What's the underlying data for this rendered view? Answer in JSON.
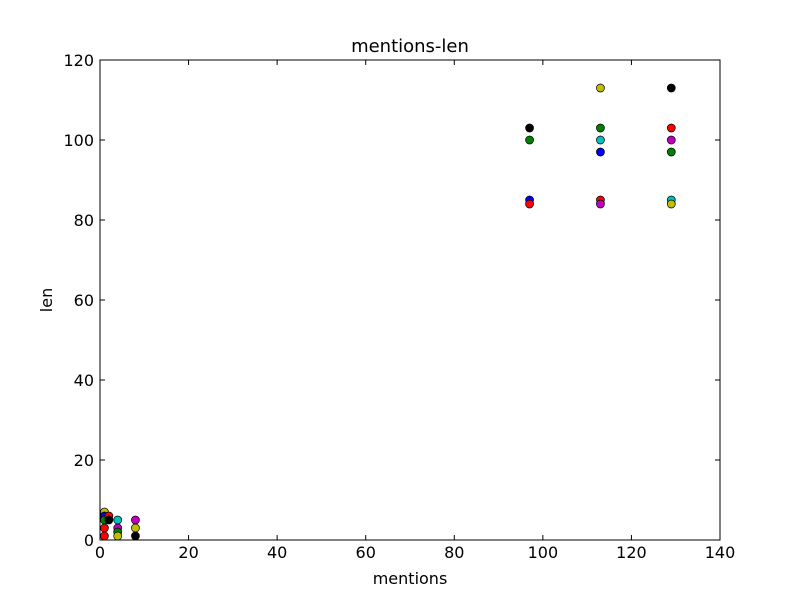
{
  "chart_data": {
    "type": "scatter",
    "title": "mentions-len",
    "xlabel": "mentions",
    "ylabel": "len",
    "xlim": [
      0,
      140
    ],
    "ylim": [
      0,
      120
    ],
    "xticks": [
      0,
      20,
      40,
      60,
      80,
      100,
      120,
      140
    ],
    "yticks": [
      0,
      20,
      40,
      60,
      80,
      100,
      120
    ],
    "grid": false,
    "colors": [
      "#0000ff",
      "#008000",
      "#ff0000",
      "#00bfbf",
      "#bf00bf",
      "#bfbf00",
      "#000000"
    ],
    "points": [
      {
        "x": 97,
        "y": 103,
        "color": "#000000"
      },
      {
        "x": 97,
        "y": 100,
        "color": "#008000"
      },
      {
        "x": 97,
        "y": 85,
        "color": "#0000ff"
      },
      {
        "x": 97,
        "y": 84,
        "color": "#ff0000"
      },
      {
        "x": 113,
        "y": 113,
        "color": "#bfbf00"
      },
      {
        "x": 113,
        "y": 103,
        "color": "#008000"
      },
      {
        "x": 113,
        "y": 100,
        "color": "#00bfbf"
      },
      {
        "x": 113,
        "y": 97,
        "color": "#0000ff"
      },
      {
        "x": 113,
        "y": 85,
        "color": "#ff0000"
      },
      {
        "x": 113,
        "y": 84,
        "color": "#bf00bf"
      },
      {
        "x": 129,
        "y": 113,
        "color": "#000000"
      },
      {
        "x": 129,
        "y": 103,
        "color": "#ff0000"
      },
      {
        "x": 129,
        "y": 100,
        "color": "#bf00bf"
      },
      {
        "x": 129,
        "y": 97,
        "color": "#008000"
      },
      {
        "x": 129,
        "y": 85,
        "color": "#00bfbf"
      },
      {
        "x": 129,
        "y": 84,
        "color": "#bfbf00"
      },
      {
        "x": 1,
        "y": 7,
        "color": "#bfbf00"
      },
      {
        "x": 1,
        "y": 6,
        "color": "#0000ff"
      },
      {
        "x": 1,
        "y": 5,
        "color": "#008000"
      },
      {
        "x": 1,
        "y": 3,
        "color": "#ff0000"
      },
      {
        "x": 1,
        "y": 1,
        "color": "#ff0000"
      },
      {
        "x": 2,
        "y": 6,
        "color": "#ff0000"
      },
      {
        "x": 2,
        "y": 5,
        "color": "#000000"
      },
      {
        "x": 4,
        "y": 5,
        "color": "#00bfbf"
      },
      {
        "x": 4,
        "y": 3,
        "color": "#bf00bf"
      },
      {
        "x": 4,
        "y": 2,
        "color": "#008000"
      },
      {
        "x": 4,
        "y": 1,
        "color": "#bfbf00"
      },
      {
        "x": 8,
        "y": 5,
        "color": "#bf00bf"
      },
      {
        "x": 8,
        "y": 3,
        "color": "#bfbf00"
      },
      {
        "x": 8,
        "y": 1,
        "color": "#000000"
      }
    ]
  }
}
